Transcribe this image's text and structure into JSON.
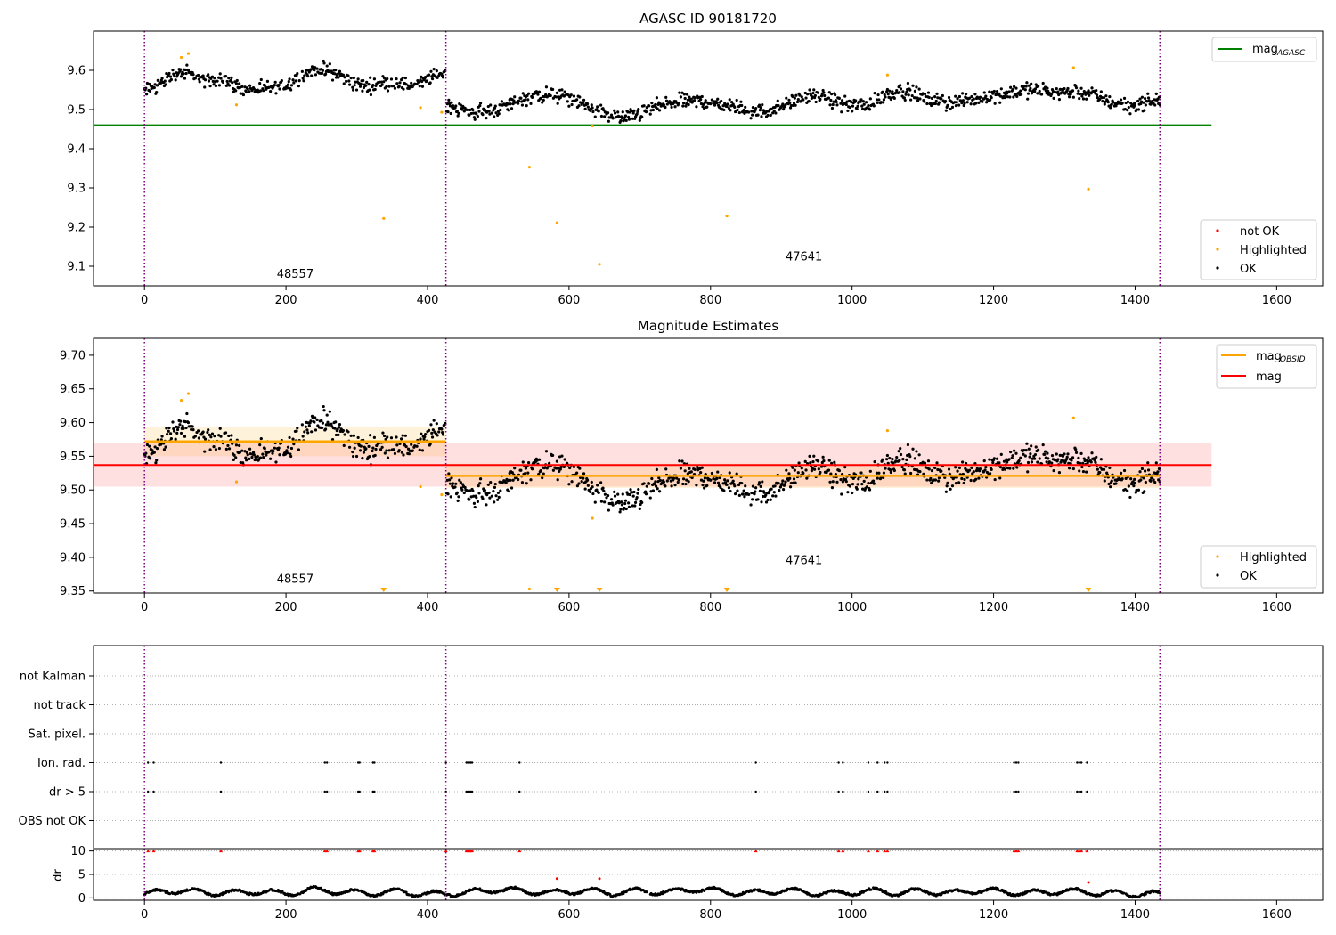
{
  "chart_data": [
    {
      "type": "scatter",
      "title": "AGASC ID 90181720",
      "xlabel": "",
      "ylabel": "",
      "xlim": [
        -72,
        1665
      ],
      "ylim": [
        9.05,
        9.7
      ],
      "xticks": [
        0,
        200,
        400,
        600,
        800,
        1000,
        1200,
        1400,
        1600
      ],
      "yticks": [
        9.1,
        9.2,
        9.3,
        9.4,
        9.5,
        9.6
      ],
      "grid": false,
      "legend_upper": {
        "placement": "upper right",
        "entries": [
          {
            "label": "mag",
            "subscript": "AGASC",
            "color": "#008000"
          }
        ]
      },
      "legend_lower": {
        "placement": "lower right",
        "entries": [
          {
            "label": "not OK",
            "color": "#ff0000"
          },
          {
            "label": "Highlighted",
            "color": "#ffa500"
          },
          {
            "label": "OK",
            "color": "#000000"
          }
        ]
      },
      "obsid_labels": [
        {
          "text": "48557",
          "x": 213,
          "y": 9.07
        },
        {
          "text": "47641",
          "x": 932,
          "y": 9.115
        }
      ],
      "obsid_boundaries": [
        0,
        426,
        1435
      ],
      "mag_agasc": {
        "value": 9.46,
        "x": [
          -72,
          1508
        ]
      },
      "series": [
        {
          "name": "OK",
          "color": "#000000",
          "segments": [
            {
              "x0": 0,
              "x1": 425,
              "values": [
                9.545,
                9.555,
                9.563,
                9.575,
                9.588,
                9.595,
                9.593,
                9.585,
                9.578,
                9.57,
                9.575,
                9.58,
                9.572,
                9.56,
                9.552,
                9.548,
                9.55,
                9.552,
                9.555,
                9.556,
                9.56,
                9.57,
                9.582,
                9.592,
                9.6,
                9.605,
                9.6,
                9.595,
                9.588,
                9.575,
                9.566,
                9.562,
                9.56,
                9.562,
                9.568,
                9.57,
                9.568,
                9.565,
                9.56,
                9.565,
                9.572,
                9.582,
                9.59,
                9.595
              ]
            },
            {
              "x0": 427,
              "x1": 1435,
              "values": [
                9.515,
                9.502,
                9.495,
                9.493,
                9.495,
                9.5,
                9.51,
                9.522,
                9.532,
                9.537,
                9.538,
                9.535,
                9.53,
                9.52,
                9.508,
                9.498,
                9.488,
                9.48,
                9.48,
                9.487,
                9.498,
                9.508,
                9.515,
                9.52,
                9.522,
                9.522,
                9.52,
                9.515,
                9.51,
                9.505,
                9.498,
                9.495,
                9.497,
                9.505,
                9.515,
                9.525,
                9.532,
                9.533,
                9.528,
                9.52,
                9.513,
                9.51,
                9.512,
                9.525,
                9.54,
                9.548,
                9.545,
                9.535,
                9.525,
                9.52,
                9.518,
                9.52,
                9.525,
                9.53,
                9.535,
                9.54,
                9.545,
                9.548,
                9.55,
                9.55,
                9.548,
                9.545,
                9.545,
                9.545,
                9.54,
                9.53,
                9.52,
                9.515,
                9.51,
                9.515,
                9.52,
                9.525
              ]
            }
          ]
        },
        {
          "name": "Highlighted",
          "color": "#ffa500",
          "points": [
            [
              52,
              9.633
            ],
            [
              62,
              9.643
            ],
            [
              130,
              9.512
            ],
            [
              338,
              9.222
            ],
            [
              390,
              9.505
            ],
            [
              420,
              9.493
            ],
            [
              544,
              9.353
            ],
            [
              583,
              9.211
            ],
            [
              633,
              9.458
            ],
            [
              643,
              9.105
            ],
            [
              823,
              9.228
            ],
            [
              1050,
              9.588
            ],
            [
              1313,
              9.607
            ],
            [
              1334,
              9.297
            ]
          ]
        },
        {
          "name": "not OK",
          "color": "#ff0000",
          "points": []
        }
      ]
    },
    {
      "type": "scatter",
      "title": "Magnitude Estimates",
      "xlabel": "",
      "ylabel": "",
      "xlim": [
        -72,
        1665
      ],
      "ylim": [
        9.347,
        9.725
      ],
      "xticks": [
        0,
        200,
        400,
        600,
        800,
        1000,
        1200,
        1400,
        1600
      ],
      "yticks": [
        9.35,
        9.4,
        9.45,
        9.5,
        9.55,
        9.6,
        9.65,
        9.7
      ],
      "grid": false,
      "legend_upper": {
        "placement": "upper right",
        "entries": [
          {
            "label": "mag",
            "subscript": "OBSID",
            "color": "#ffa500"
          },
          {
            "label": "mag",
            "subscript": "",
            "color": "#ff0000"
          }
        ]
      },
      "legend_lower": {
        "placement": "lower right",
        "entries": [
          {
            "label": "Highlighted",
            "color": "#ffa500"
          },
          {
            "label": "OK",
            "color": "#000000"
          }
        ]
      },
      "obsid_labels": [
        {
          "text": "48557",
          "x": 213,
          "y": 9.362
        },
        {
          "text": "47641",
          "x": 932,
          "y": 9.39
        }
      ],
      "obsid_boundaries": [
        0,
        426,
        1435
      ],
      "mag": {
        "value": 9.537,
        "band": [
          9.505,
          9.569
        ],
        "x": [
          -72,
          1508
        ]
      },
      "mag_obsid": [
        {
          "x": [
            0,
            426
          ],
          "value": 9.572,
          "band": [
            9.55,
            9.594
          ]
        },
        {
          "x": [
            426,
            1435
          ],
          "value": 9.521,
          "band": [
            9.503,
            9.539
          ]
        }
      ],
      "out_of_range_markers": [
        338,
        583,
        643,
        823,
        1334
      ],
      "series": [
        {
          "name": "OK",
          "color": "#000000",
          "same_as": "chart_data[0].series[0]"
        },
        {
          "name": "Highlighted",
          "color": "#ffa500",
          "points": [
            [
              52,
              9.633
            ],
            [
              62,
              9.643
            ],
            [
              130,
              9.512
            ],
            [
              390,
              9.505
            ],
            [
              420,
              9.493
            ],
            [
              544,
              9.353
            ],
            [
              633,
              9.458
            ],
            [
              1050,
              9.588
            ],
            [
              1313,
              9.607
            ]
          ]
        }
      ]
    },
    {
      "type": "scatter",
      "title": "",
      "xlabel": "",
      "xlim": [
        -72,
        1665
      ],
      "xticks": [
        0,
        200,
        400,
        600,
        800,
        1000,
        1200,
        1400,
        1600
      ],
      "grid": true,
      "flag_rows": [
        "not Kalman",
        "not track",
        "Sat. pixel.",
        "Ion. rad.",
        "dr > 5",
        "OBS not OK"
      ],
      "flag_points": {
        "Ion. rad.": [
          5,
          13,
          108,
          255,
          258,
          302,
          304,
          323,
          325,
          426,
          455,
          457,
          459,
          461,
          463,
          530,
          864,
          981,
          987,
          1023,
          1036,
          1046,
          1050,
          1229,
          1232,
          1235,
          1318,
          1321,
          1324,
          1332
        ],
        "dr > 5": [
          5,
          13,
          108,
          255,
          258,
          302,
          304,
          323,
          325,
          426,
          455,
          457,
          459,
          461,
          463,
          530,
          864,
          981,
          987,
          1023,
          1036,
          1046,
          1050,
          1229,
          1232,
          1235,
          1318,
          1321,
          1324,
          1332
        ]
      },
      "obsid_boundaries": [
        0,
        426,
        1435
      ],
      "dr_panel": {
        "ylabel": "dr",
        "yticks": [
          0,
          5,
          10
        ],
        "ylim": [
          -0.5,
          10.5
        ],
        "clip_value": 10,
        "ok_trend_x": [
          0,
          40,
          80,
          120,
          160,
          200,
          240,
          280,
          320,
          360,
          400,
          426,
          460,
          500,
          540,
          580,
          620,
          660,
          700,
          740,
          780,
          820,
          860,
          900,
          940,
          980,
          1020,
          1060,
          1100,
          1140,
          1180,
          1220,
          1260,
          1300,
          1340,
          1380,
          1435
        ],
        "ok_trend_y": [
          0.8,
          1.6,
          1.2,
          1.0,
          1.4,
          0.9,
          1.8,
          1.2,
          1.0,
          1.3,
          0.8,
          0.9,
          1.2,
          1.8,
          1.4,
          1.1,
          1.6,
          1.0,
          1.5,
          1.2,
          1.9,
          1.3,
          1.0,
          1.6,
          1.1,
          0.9,
          1.5,
          1.1,
          1.4,
          1.0,
          1.6,
          1.2,
          1.0,
          1.5,
          1.1,
          0.9,
          0.8
        ],
        "not_ok_outliers": [
          [
            583,
            4.1
          ],
          [
            643,
            4.1
          ],
          [
            1334,
            3.3
          ]
        ],
        "color_ok": "#000000",
        "color_not_ok": "#ff0000"
      }
    }
  ],
  "colors": {
    "ok": "#000000",
    "highlighted": "#ffa500",
    "not_ok": "#ff0000",
    "mag_agasc": "#008000",
    "mag": "#ff0000",
    "mag_obsid": "#ffa500",
    "boundary": "#800080",
    "grid": "#b0b0b0"
  }
}
